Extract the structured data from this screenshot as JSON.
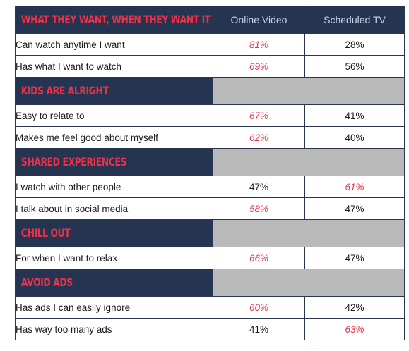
{
  "chart_data": {
    "type": "table",
    "columns": [
      "Online Video",
      "Scheduled TV"
    ],
    "highlight_color": "#e8334a",
    "section_title_color": "#ee3048",
    "section_bg": "#253551",
    "sections": [
      {
        "title": "WHAT THEY WANT, WHEN THEY WANT IT",
        "rows": [
          {
            "label": "Can watch anytime I want",
            "values": [
              "81%",
              "28%"
            ],
            "highlight": [
              true,
              false
            ]
          },
          {
            "label": "Has what I want to watch",
            "values": [
              "69%",
              "56%"
            ],
            "highlight": [
              true,
              false
            ]
          }
        ]
      },
      {
        "title": "KIDS ARE ALRIGHT",
        "rows": [
          {
            "label": "Easy to relate to",
            "values": [
              "67%",
              "41%"
            ],
            "highlight": [
              true,
              false
            ]
          },
          {
            "label": "Makes me feel good about myself",
            "values": [
              "62%",
              "40%"
            ],
            "highlight": [
              true,
              false
            ]
          }
        ]
      },
      {
        "title": "SHARED EXPERIENCES",
        "rows": [
          {
            "label": "I watch with other people",
            "values": [
              "47%",
              "61%"
            ],
            "highlight": [
              false,
              true
            ]
          },
          {
            "label": "I talk about in social media",
            "values": [
              "58%",
              "47%"
            ],
            "highlight": [
              true,
              false
            ]
          }
        ]
      },
      {
        "title": "CHILL OUT",
        "rows": [
          {
            "label": "For when I want to relax",
            "values": [
              "66%",
              "47%"
            ],
            "highlight": [
              true,
              false
            ]
          }
        ]
      },
      {
        "title": "AVOID ADS",
        "rows": [
          {
            "label": "Has ads I can easily ignore",
            "values": [
              "60%",
              "42%"
            ],
            "highlight": [
              true,
              false
            ]
          },
          {
            "label": "Has way too many ads",
            "values": [
              "41%",
              "63%"
            ],
            "highlight": [
              false,
              true
            ]
          }
        ]
      }
    ]
  }
}
